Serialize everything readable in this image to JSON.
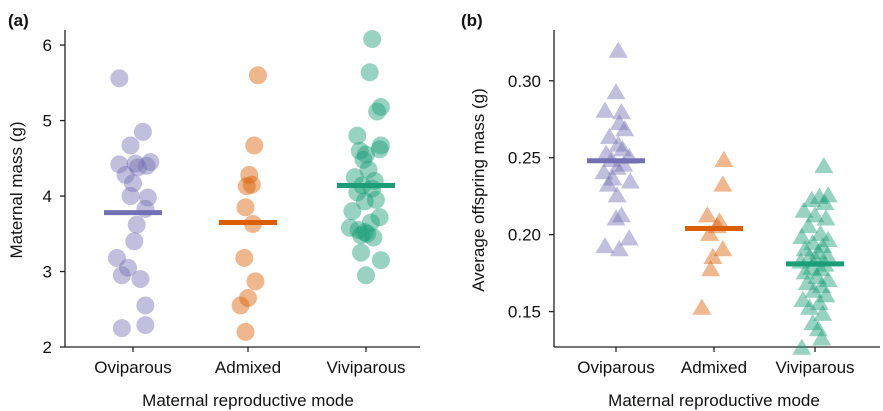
{
  "colors": {
    "Oviparous": "#7570b3",
    "Admixed": "#d95f02",
    "Viviparous": "#1b9e77"
  },
  "chart_data": [
    {
      "type": "scatter",
      "panel_label": "(a)",
      "marker": "circle",
      "categories": [
        "Oviparous",
        "Admixed",
        "Viviparous"
      ],
      "xlabel": "Maternal reproductive mode",
      "ylabel": "Maternal mass (g)",
      "ylim": [
        2,
        6.2
      ],
      "yticks": [
        2,
        3,
        4,
        5,
        6
      ],
      "ytick_labels": [
        "2",
        "3",
        "4",
        "5",
        "6"
      ],
      "grid": false,
      "means": [
        3.78,
        3.65,
        4.14
      ],
      "series": [
        {
          "name": "Oviparous",
          "values": [
            5.56,
            4.85,
            4.67,
            4.45,
            4.43,
            4.42,
            4.4,
            4.38,
            4.28,
            4.17,
            4.0,
            3.98,
            3.83,
            3.62,
            3.4,
            3.18,
            3.05,
            2.95,
            2.9,
            2.55,
            2.29,
            2.25
          ],
          "offsets": [
            -0.22,
            0.16,
            -0.04,
            0.28,
            0.04,
            -0.22,
            0.22,
            0.08,
            -0.12,
            0.0,
            -0.04,
            0.24,
            0.2,
            0.06,
            0.02,
            -0.26,
            -0.08,
            -0.18,
            0.12,
            0.2,
            0.2,
            -0.18
          ]
        },
        {
          "name": "Admixed",
          "values": [
            5.6,
            4.67,
            4.28,
            4.15,
            4.13,
            3.85,
            3.63,
            3.18,
            2.87,
            2.65,
            2.55,
            2.2
          ],
          "offsets": [
            0.16,
            0.1,
            0.02,
            0.06,
            -0.02,
            -0.04,
            0.08,
            -0.06,
            0.12,
            0.0,
            -0.12,
            -0.04
          ]
        },
        {
          "name": "Viviparous",
          "values": [
            6.08,
            5.64,
            5.18,
            5.12,
            4.8,
            4.67,
            4.62,
            4.6,
            4.55,
            4.48,
            4.35,
            4.25,
            4.2,
            4.14,
            4.1,
            4.05,
            3.95,
            3.93,
            3.8,
            3.72,
            3.65,
            3.58,
            3.55,
            3.52,
            3.5,
            3.48,
            3.45,
            3.25,
            3.15,
            2.95
          ],
          "offsets": [
            0.1,
            0.06,
            0.24,
            0.18,
            -0.14,
            0.24,
            0.22,
            -0.1,
            0.0,
            -0.04,
            0.04,
            -0.18,
            0.14,
            -0.06,
            0.1,
            -0.14,
            0.16,
            -0.02,
            -0.22,
            0.22,
            0.08,
            -0.26,
            -0.12,
            -0.02,
            0.02,
            -0.08,
            0.12,
            -0.08,
            0.24,
            0.0
          ]
        }
      ]
    },
    {
      "type": "scatter",
      "panel_label": "(b)",
      "marker": "triangle",
      "categories": [
        "Oviparous",
        "Admixed",
        "Viviparous"
      ],
      "xlabel": "Maternal reproductive mode",
      "ylabel": "Average offspring mass (g)",
      "ylim": [
        0.127,
        0.333
      ],
      "yticks": [
        0.15,
        0.2,
        0.25,
        0.3
      ],
      "ytick_labels": [
        "0.15",
        "0.20",
        "0.25",
        "0.30"
      ],
      "grid": false,
      "means": [
        0.248,
        0.204,
        0.181
      ],
      "series": [
        {
          "name": "Oviparous",
          "values": [
            0.319,
            0.292,
            0.28,
            0.279,
            0.272,
            0.268,
            0.263,
            0.258,
            0.255,
            0.252,
            0.25,
            0.248,
            0.245,
            0.243,
            0.24,
            0.236,
            0.234,
            0.232,
            0.225,
            0.212,
            0.21,
            0.197,
            0.192,
            0.19
          ],
          "offsets": [
            0.04,
            0.0,
            -0.2,
            0.1,
            0.06,
            0.16,
            -0.12,
            0.04,
            0.12,
            -0.18,
            0.24,
            -0.08,
            0.14,
            0.02,
            -0.22,
            -0.06,
            0.26,
            -0.14,
            0.02,
            0.1,
            0.0,
            0.24,
            -0.2,
            0.06
          ]
        },
        {
          "name": "Admixed",
          "values": [
            0.248,
            0.232,
            0.212,
            0.208,
            0.205,
            0.2,
            0.19,
            0.185,
            0.177,
            0.152
          ],
          "offsets": [
            0.18,
            0.16,
            -0.12,
            0.1,
            0.06,
            -0.08,
            0.16,
            -0.02,
            -0.06,
            -0.22
          ]
        },
        {
          "name": "Viviparous",
          "values": [
            0.244,
            0.225,
            0.224,
            0.222,
            0.22,
            0.215,
            0.212,
            0.21,
            0.205,
            0.2,
            0.198,
            0.196,
            0.194,
            0.192,
            0.19,
            0.188,
            0.186,
            0.185,
            0.183,
            0.182,
            0.18,
            0.178,
            0.177,
            0.175,
            0.172,
            0.17,
            0.168,
            0.166,
            0.163,
            0.16,
            0.157,
            0.155,
            0.152,
            0.148,
            0.142,
            0.138,
            0.132,
            0.126
          ],
          "offsets": [
            0.16,
            0.24,
            0.08,
            -0.06,
            0.18,
            -0.2,
            0.0,
            0.2,
            -0.12,
            0.1,
            -0.24,
            0.24,
            -0.04,
            0.14,
            -0.18,
            0.06,
            0.22,
            -0.1,
            0.02,
            -0.26,
            0.18,
            -0.06,
            0.1,
            -0.18,
            0.04,
            0.24,
            -0.14,
            0.12,
            -0.02,
            0.2,
            -0.22,
            0.08,
            -0.1,
            0.14,
            -0.04,
            0.06,
            0.12,
            -0.24
          ]
        }
      ]
    }
  ]
}
